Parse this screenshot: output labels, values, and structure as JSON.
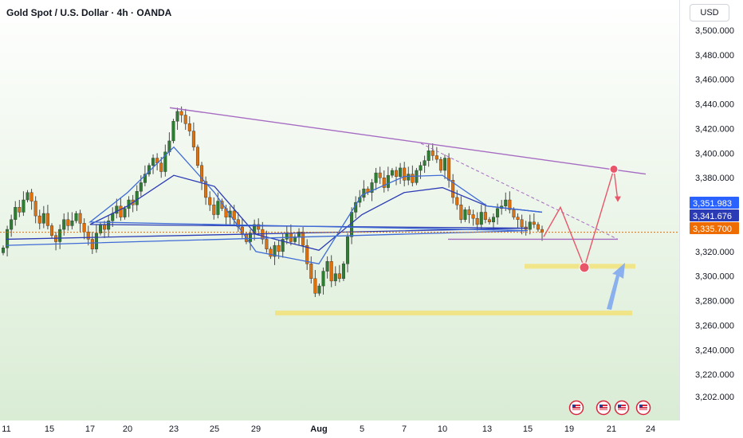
{
  "header": {
    "title": "Gold Spot / U.S. Dollar · 4h · OANDA"
  },
  "currency_button": {
    "label": "USD"
  },
  "colors": {
    "bg_top": "#ffffff",
    "bg_bottom": "#d9ecd4",
    "candle_up": "#2f7d32",
    "candle_down": "#e0700a",
    "ma_fast": "#3e6bd6",
    "ma_slow": "#2b3bb5",
    "resistance_line": "#a66bc2",
    "support_zone": "#f2e27a",
    "projection": "#e8566a",
    "arrow_up": "#7fa8ef"
  },
  "chart_data": {
    "type": "candlestick",
    "symbol": "Gold Spot / U.S. Dollar",
    "interval": "4h",
    "source": "OANDA",
    "ylim": [
      3195,
      3510
    ],
    "yticks": [
      "3,500.000",
      "3,480.000",
      "3,460.000",
      "3,440.000",
      "3,420.000",
      "3,400.000",
      "3,380.000",
      "3,360.000",
      "3,340.000",
      "3,320.000",
      "3,300.000",
      "3,280.000",
      "3,260.000",
      "3,240.000",
      "3,220.000",
      "3,202.000"
    ],
    "xticks": [
      "11",
      "15",
      "17",
      "20",
      "23",
      "25",
      "29",
      "Aug",
      "5",
      "7",
      "10",
      "13",
      "15",
      "19",
      "21",
      "24"
    ],
    "price_labels": [
      {
        "value": 3351.983,
        "text": "3,351.983",
        "color": "#2962ff"
      },
      {
        "value": 3341.676,
        "text": "3,341.676",
        "color": "#2b3bb5"
      },
      {
        "value": 3335.7,
        "text": "3,335.700",
        "color": "#ef6c00"
      }
    ],
    "last_price": 3335.7,
    "candle_closes": [
      3323,
      3338,
      3346,
      3356,
      3352,
      3362,
      3368,
      3361,
      3349,
      3343,
      3351,
      3341,
      3333,
      3328,
      3338,
      3346,
      3341,
      3345,
      3351,
      3343,
      3336,
      3330,
      3322,
      3335,
      3342,
      3338,
      3345,
      3351,
      3357,
      3348,
      3355,
      3362,
      3358,
      3369,
      3376,
      3383,
      3390,
      3396,
      3392,
      3385,
      3401,
      3410,
      3426,
      3434,
      3431,
      3424,
      3418,
      3405,
      3390,
      3377,
      3364,
      3358,
      3350,
      3361,
      3355,
      3348,
      3353,
      3346,
      3340,
      3334,
      3328,
      3335,
      3342,
      3338,
      3330,
      3322,
      3316,
      3325,
      3320,
      3330,
      3335,
      3328,
      3332,
      3336,
      3325,
      3310,
      3298,
      3286,
      3292,
      3304,
      3312,
      3296,
      3302,
      3298,
      3310,
      3332,
      3352,
      3360,
      3364,
      3371,
      3368,
      3376,
      3384,
      3380,
      3372,
      3382,
      3386,
      3381,
      3388,
      3378,
      3383,
      3376,
      3386,
      3390,
      3394,
      3402,
      3398,
      3395,
      3386,
      3396,
      3378,
      3364,
      3358,
      3346,
      3354,
      3350,
      3347,
      3342,
      3352,
      3346,
      3344,
      3348,
      3355,
      3357,
      3362,
      3354,
      3348,
      3346,
      3340,
      3338,
      3344,
      3342,
      3338,
      3335.7
    ],
    "ma_fast": [
      {
        "x": "11",
        "y": 3325
      },
      {
        "x": "15",
        "y": 3337
      },
      {
        "x": "17",
        "y": 3344
      },
      {
        "x": "20",
        "y": 3368
      },
      {
        "x": "23",
        "y": 3405
      },
      {
        "x": "25",
        "y": 3368
      },
      {
        "x": "29",
        "y": 3320
      },
      {
        "x": "Aug",
        "y": 3310
      },
      {
        "x": "5",
        "y": 3366
      },
      {
        "x": "7",
        "y": 3381
      },
      {
        "x": "10",
        "y": 3382
      },
      {
        "x": "13",
        "y": 3357
      },
      {
        "x": "15",
        "y": 3352
      }
    ],
    "ma_slow": [
      {
        "x": "11",
        "y": 3330
      },
      {
        "x": "15",
        "y": 3339
      },
      {
        "x": "17",
        "y": 3342
      },
      {
        "x": "20",
        "y": 3357
      },
      {
        "x": "23",
        "y": 3382
      },
      {
        "x": "25",
        "y": 3373
      },
      {
        "x": "29",
        "y": 3334
      },
      {
        "x": "Aug",
        "y": 3321
      },
      {
        "x": "5",
        "y": 3350
      },
      {
        "x": "7",
        "y": 3368
      },
      {
        "x": "10",
        "y": 3372
      },
      {
        "x": "13",
        "y": 3357
      },
      {
        "x": "15",
        "y": 3352
      }
    ],
    "resistance": {
      "from": {
        "x": "23",
        "y": 3437
      },
      "to": {
        "x": "24",
        "y": 3383
      }
    },
    "support_zones": [
      {
        "y": 3308
      },
      {
        "y": 3270
      }
    ],
    "projection_path": [
      {
        "x": "15",
        "y": 3332
      },
      {
        "x": "19",
        "y": 3356
      },
      {
        "x": "21",
        "y": 3307
      },
      {
        "x": "21",
        "y": 3387
      },
      {
        "x": "21",
        "y": 3361
      }
    ],
    "event_icons": 4
  }
}
